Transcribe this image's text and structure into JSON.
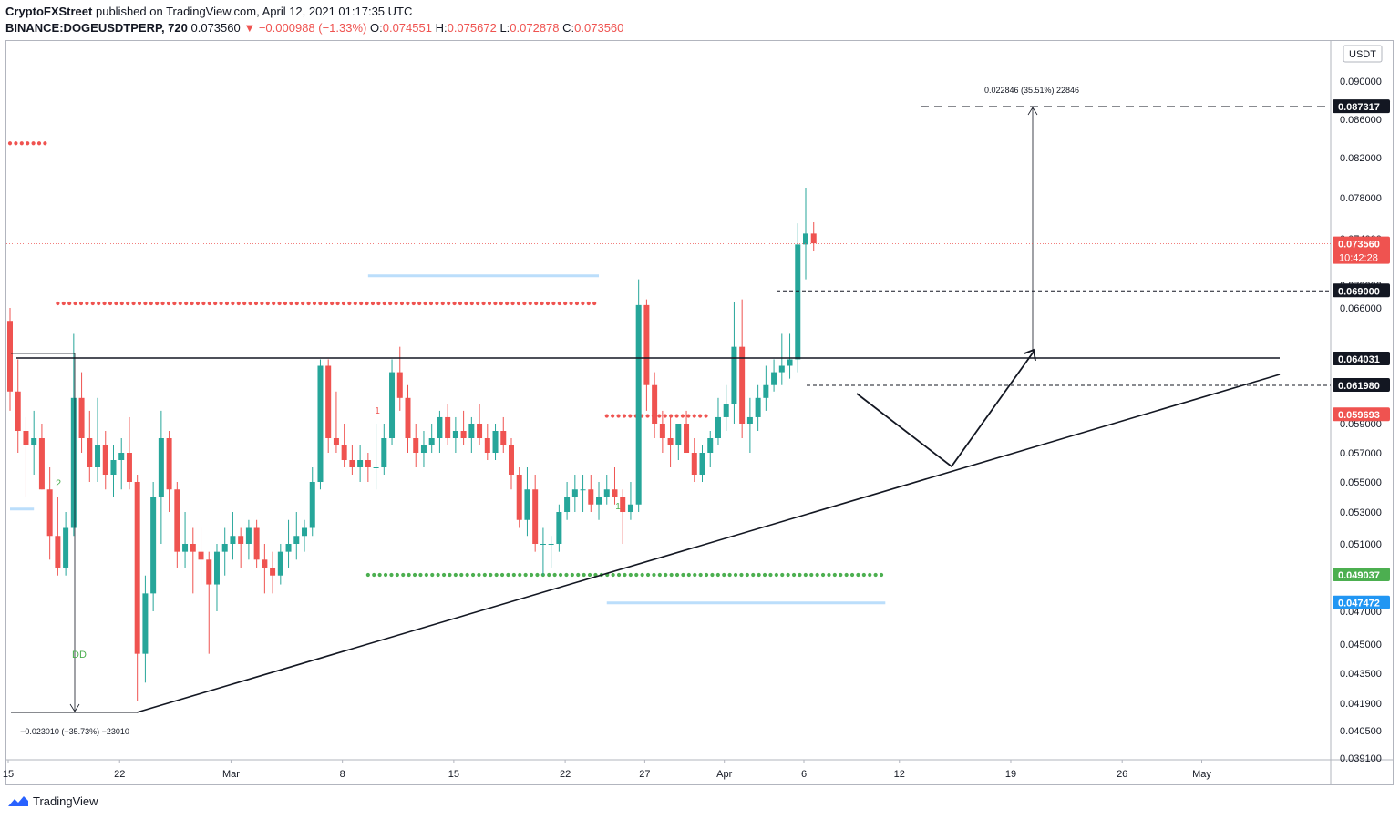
{
  "header": {
    "publisher": "CryptoFXStreet",
    "published_text": "published on TradingView.com, April 12, 2021 01:17:35 UTC",
    "symbol": "BINANCE:DOGEUSDTPERP, 720",
    "last": "0.073560",
    "change": "▼ −0.000988 (−1.33%)",
    "o_label": "O:",
    "o": "0.074551",
    "h_label": "H:",
    "h": "0.075672",
    "l_label": "L:",
    "l": "0.072878",
    "c_label": "C:",
    "c": "0.073560"
  },
  "footer": {
    "brand": "TradingView"
  },
  "colors": {
    "up": "#26a69a",
    "down": "#ef5350",
    "blue": "#2196f3",
    "green": "#4caf50",
    "lightblue": "#bbdefb"
  },
  "chart_data": {
    "type": "candlestick",
    "currency": "USDT",
    "y_ticks": [
      "0.090000",
      "0.086000",
      "0.082000",
      "0.078000",
      "0.074000",
      "0.070000",
      "0.066000",
      "0.059000",
      "0.057000",
      "0.055000",
      "0.053000",
      "0.051000",
      "0.047000",
      "0.045000",
      "0.043500",
      "0.041900",
      "0.040500",
      "0.039100"
    ],
    "x_ticks": [
      {
        "label": "15",
        "x": 0
      },
      {
        "label": "22",
        "x": 14
      },
      {
        "label": "Mar",
        "x": 28
      },
      {
        "label": "8",
        "x": 42
      },
      {
        "label": "15",
        "x": 56
      },
      {
        "label": "22",
        "x": 70
      },
      {
        "label": "27",
        "x": 80
      },
      {
        "label": "Apr",
        "x": 90
      },
      {
        "label": "6",
        "x": 100
      },
      {
        "label": "12",
        "x": 112
      },
      {
        "label": "19",
        "x": 126
      },
      {
        "label": "26",
        "x": 140
      },
      {
        "label": "May",
        "x": 150
      }
    ],
    "price_labels": [
      {
        "value": 0.087317,
        "text": "0.087317",
        "style": "black"
      },
      {
        "value": 0.07356,
        "text": "0.073560",
        "sub": "10:42:28",
        "style": "red"
      },
      {
        "value": 0.069,
        "text": "0.069000",
        "style": "black"
      },
      {
        "value": 0.064031,
        "text": "0.064031",
        "style": "black"
      },
      {
        "value": 0.06198,
        "text": "0.061980",
        "style": "black"
      },
      {
        "value": 0.059693,
        "text": "0.059693",
        "style": "red"
      },
      {
        "value": 0.049037,
        "text": "0.049037",
        "style": "green"
      },
      {
        "value": 0.047472,
        "text": "0.047472",
        "style": "blue"
      }
    ],
    "annotations": {
      "upper_measure": "0.022846 (35.51%) 22846",
      "lower_measure": "−0.023010 (−35.73%) −23010",
      "dd": "DD",
      "marker_2": "2",
      "marker_1_red": "1",
      "marker_1_green": "1"
    },
    "candles": [
      [
        0.0655,
        0.066,
        0.06,
        0.0615
      ],
      [
        0.0615,
        0.064,
        0.057,
        0.0585
      ],
      [
        0.0585,
        0.0595,
        0.054,
        0.0575
      ],
      [
        0.0575,
        0.06,
        0.0555,
        0.058
      ],
      [
        0.058,
        0.059,
        0.0545,
        0.0545
      ],
      [
        0.0545,
        0.056,
        0.05,
        0.0515
      ],
      [
        0.0515,
        0.054,
        0.049,
        0.0495
      ],
      [
        0.0495,
        0.053,
        0.049,
        0.052
      ],
      [
        0.052,
        0.065,
        0.0515,
        0.061
      ],
      [
        0.061,
        0.063,
        0.057,
        0.058
      ],
      [
        0.058,
        0.06,
        0.055,
        0.056
      ],
      [
        0.056,
        0.061,
        0.055,
        0.0575
      ],
      [
        0.0575,
        0.0585,
        0.0545,
        0.0555
      ],
      [
        0.0555,
        0.0575,
        0.054,
        0.0565
      ],
      [
        0.0565,
        0.058,
        0.0545,
        0.057
      ],
      [
        0.057,
        0.0595,
        0.0545,
        0.055
      ],
      [
        0.055,
        0.0555,
        0.042,
        0.0445
      ],
      [
        0.0445,
        0.049,
        0.043,
        0.048
      ],
      [
        0.048,
        0.055,
        0.047,
        0.054
      ],
      [
        0.054,
        0.06,
        0.051,
        0.058
      ],
      [
        0.058,
        0.0585,
        0.053,
        0.0545
      ],
      [
        0.0545,
        0.055,
        0.0495,
        0.0505
      ],
      [
        0.0505,
        0.053,
        0.0495,
        0.051
      ],
      [
        0.051,
        0.052,
        0.048,
        0.0505
      ],
      [
        0.0505,
        0.052,
        0.0485,
        0.05
      ],
      [
        0.05,
        0.0505,
        0.0445,
        0.0485
      ],
      [
        0.0485,
        0.051,
        0.047,
        0.0505
      ],
      [
        0.0505,
        0.052,
        0.049,
        0.051
      ],
      [
        0.051,
        0.053,
        0.05,
        0.0515
      ],
      [
        0.0515,
        0.052,
        0.0495,
        0.051
      ],
      [
        0.051,
        0.0525,
        0.05,
        0.052
      ],
      [
        0.052,
        0.0525,
        0.0495,
        0.05
      ],
      [
        0.05,
        0.051,
        0.048,
        0.0495
      ],
      [
        0.0495,
        0.0505,
        0.048,
        0.049
      ],
      [
        0.049,
        0.051,
        0.0485,
        0.0505
      ],
      [
        0.0505,
        0.0525,
        0.0495,
        0.051
      ],
      [
        0.051,
        0.053,
        0.05,
        0.0515
      ],
      [
        0.0515,
        0.0525,
        0.0505,
        0.052
      ],
      [
        0.052,
        0.056,
        0.0515,
        0.055
      ],
      [
        0.055,
        0.064,
        0.0545,
        0.0635
      ],
      [
        0.0635,
        0.064,
        0.057,
        0.058
      ],
      [
        0.058,
        0.0615,
        0.057,
        0.0575
      ],
      [
        0.0575,
        0.059,
        0.056,
        0.0565
      ],
      [
        0.0565,
        0.0575,
        0.0555,
        0.056
      ],
      [
        0.056,
        0.0575,
        0.055,
        0.0565
      ],
      [
        0.0565,
        0.057,
        0.055,
        0.056
      ],
      [
        0.056,
        0.059,
        0.0545,
        0.056
      ],
      [
        0.056,
        0.059,
        0.0555,
        0.058
      ],
      [
        0.058,
        0.064,
        0.0575,
        0.063
      ],
      [
        0.063,
        0.0645,
        0.06,
        0.061
      ],
      [
        0.061,
        0.062,
        0.057,
        0.058
      ],
      [
        0.058,
        0.059,
        0.056,
        0.057
      ],
      [
        0.057,
        0.0585,
        0.056,
        0.0575
      ],
      [
        0.0575,
        0.059,
        0.057,
        0.058
      ],
      [
        0.058,
        0.06,
        0.057,
        0.0595
      ],
      [
        0.0595,
        0.0605,
        0.0575,
        0.058
      ],
      [
        0.058,
        0.0595,
        0.057,
        0.0585
      ],
      [
        0.0585,
        0.06,
        0.0575,
        0.058
      ],
      [
        0.058,
        0.0595,
        0.057,
        0.059
      ],
      [
        0.059,
        0.0605,
        0.0575,
        0.058
      ],
      [
        0.058,
        0.059,
        0.0565,
        0.057
      ],
      [
        0.057,
        0.059,
        0.0565,
        0.0585
      ],
      [
        0.0585,
        0.0595,
        0.057,
        0.0575
      ],
      [
        0.0575,
        0.058,
        0.0545,
        0.0555
      ],
      [
        0.0555,
        0.056,
        0.052,
        0.0525
      ],
      [
        0.0525,
        0.056,
        0.0515,
        0.0545
      ],
      [
        0.0545,
        0.0555,
        0.0505,
        0.051
      ],
      [
        0.051,
        0.052,
        0.049,
        0.051
      ],
      [
        0.051,
        0.0515,
        0.0495,
        0.051
      ],
      [
        0.051,
        0.0535,
        0.0505,
        0.053
      ],
      [
        0.053,
        0.055,
        0.0525,
        0.054
      ],
      [
        0.054,
        0.0555,
        0.053,
        0.0545
      ],
      [
        0.0545,
        0.0555,
        0.053,
        0.0545
      ],
      [
        0.0545,
        0.0555,
        0.053,
        0.0535
      ],
      [
        0.0535,
        0.055,
        0.0525,
        0.054
      ],
      [
        0.054,
        0.0555,
        0.0535,
        0.0545
      ],
      [
        0.0545,
        0.056,
        0.0535,
        0.054
      ],
      [
        0.054,
        0.0545,
        0.051,
        0.053
      ],
      [
        0.053,
        0.055,
        0.0525,
        0.0535
      ],
      [
        0.0535,
        0.0705,
        0.053,
        0.0665
      ],
      [
        0.0665,
        0.0675,
        0.06,
        0.062
      ],
      [
        0.062,
        0.063,
        0.058,
        0.059
      ],
      [
        0.059,
        0.06,
        0.057,
        0.058
      ],
      [
        0.058,
        0.0595,
        0.056,
        0.0575
      ],
      [
        0.0575,
        0.059,
        0.0565,
        0.059
      ],
      [
        0.059,
        0.06,
        0.057,
        0.057
      ],
      [
        0.057,
        0.058,
        0.055,
        0.0555
      ],
      [
        0.0555,
        0.0575,
        0.055,
        0.057
      ],
      [
        0.057,
        0.0585,
        0.056,
        0.058
      ],
      [
        0.058,
        0.061,
        0.0575,
        0.0595
      ],
      [
        0.0595,
        0.062,
        0.0585,
        0.0605
      ],
      [
        0.0605,
        0.067,
        0.059,
        0.0645
      ],
      [
        0.0645,
        0.0675,
        0.058,
        0.059
      ],
      [
        0.059,
        0.061,
        0.057,
        0.0595
      ],
      [
        0.0595,
        0.062,
        0.0585,
        0.061
      ],
      [
        0.061,
        0.0635,
        0.06,
        0.062
      ],
      [
        0.062,
        0.064,
        0.0615,
        0.063
      ],
      [
        0.063,
        0.065,
        0.062,
        0.0635
      ],
      [
        0.0635,
        0.065,
        0.0625,
        0.064
      ],
      [
        0.064,
        0.0755,
        0.063,
        0.0735
      ],
      [
        0.0735,
        0.079,
        0.0705,
        0.0745
      ],
      [
        0.0745,
        0.0756,
        0.0729,
        0.0736
      ]
    ],
    "lines": {
      "resistance": 0.064031,
      "support_trend": [
        [
          16,
          0.0415
        ],
        [
          156,
          0.0625
        ]
      ],
      "target": 0.087317,
      "dashed_0690": 0.069,
      "dashed_0620": 0.06198,
      "forecast_path": [
        [
          104,
          0.0612
        ],
        [
          116,
          0.056
        ],
        [
          126,
          0.064
        ]
      ],
      "upper_measure_arrow": [
        [
          126,
          0.064
        ],
        [
          126,
          0.0873
        ]
      ],
      "lower_measure_arrow": [
        [
          8,
          0.0645
        ],
        [
          8,
          0.0415
        ]
      ]
    },
    "dot_rows": [
      {
        "y": 0.0835,
        "x0": 0,
        "x1": 5,
        "color": "#ef5350"
      },
      {
        "y": 0.0668,
        "x0": 6,
        "x1": 74,
        "color": "#ef5350"
      },
      {
        "y": 0.0596,
        "x0": 75,
        "x1": 88,
        "color": "#ef5350"
      },
      {
        "y": 0.049037,
        "x0": 45,
        "x1": 110,
        "color": "#4caf50"
      }
    ],
    "light_lines": [
      {
        "y": 0.0708,
        "x0": 45,
        "x1": 74
      },
      {
        "y": 0.047472,
        "x0": 75,
        "x1": 110
      },
      {
        "y": 0.0532,
        "x0": 0,
        "x1": 3
      }
    ]
  }
}
